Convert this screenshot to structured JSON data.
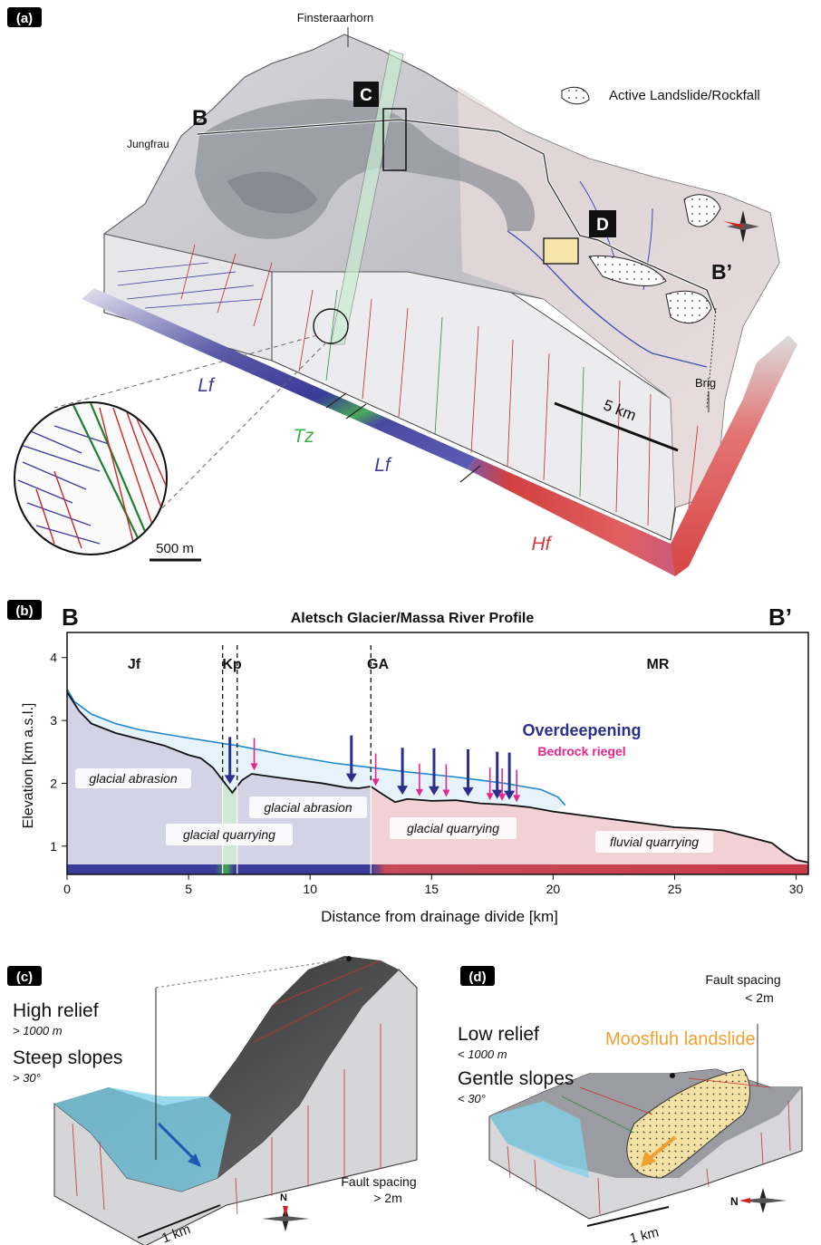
{
  "panels": {
    "a": {
      "tag": "(a)",
      "peak_1": "Finsteraarhorn",
      "peak_2": "Jungfrau",
      "town": "Brig",
      "legend": "Active Landslide/Rockfall",
      "point_b": "B",
      "point_b_prime": "B’",
      "box_c": "C",
      "box_d": "D",
      "scale_km": "5 km",
      "scale_m": "500 m",
      "zone_lf_1": "Lf",
      "zone_tz": "Tz",
      "zone_lf_2": "Lf",
      "zone_hf": "Hf"
    },
    "b": {
      "tag": "(b)",
      "title": "Aletsch Glacier/Massa River Profile",
      "left_label": "B",
      "right_label": "B’",
      "zones": [
        "Jf",
        "Kp",
        "GA",
        "MR"
      ],
      "legend_overdeepening": "Overdeepening",
      "legend_riegel": "Bedrock riegel",
      "process_1": "glacial abrasion",
      "process_2": "glacial quarrying",
      "process_3": "glacial abrasion",
      "process_4": "glacial quarrying",
      "process_5": "fluvial quarrying",
      "xlabel": "Distance from drainage divide  [km]",
      "ylabel": "Elevation [km a.s.l.]"
    },
    "c": {
      "tag": "(c)",
      "relief": "High relief",
      "relief_val": "> 1000 m",
      "slope": "Steep slopes",
      "slope_val": "> 30°",
      "fault_1": "Fault spacing",
      "fault_2": "> 2m",
      "scale": "1 km",
      "north": "N"
    },
    "d": {
      "tag": "(d)",
      "relief": "Low relief",
      "relief_val": "< 1000 m",
      "slope": "Gentle slopes",
      "slope_val": "< 30°",
      "fault_1": "Fault spacing",
      "fault_2": "< 2m",
      "landslide": "Moosfluh landslide",
      "scale": "1 km",
      "north": "N"
    }
  },
  "colors": {
    "lf": "#3d3d9a",
    "tz": "#3fae4a",
    "hf": "#d43a3a",
    "ice": "#1e88d0",
    "overdeepening": "#2b2f8f",
    "riegel": "#e8268c",
    "landslide": "#f0a030"
  },
  "chart_data": {
    "type": "line",
    "xlim": [
      0,
      30.5
    ],
    "ylim": [
      0.55,
      4.4
    ],
    "xticks": [
      0,
      5,
      10,
      15,
      20,
      25,
      30
    ],
    "yticks": [
      1,
      2,
      3,
      4
    ],
    "series": [
      {
        "name": "ice",
        "x": [
          0,
          0.3,
          1,
          2,
          3,
          5,
          7,
          9,
          11,
          12.5,
          14,
          16,
          18,
          19.5,
          20.2,
          20.5
        ],
        "y": [
          3.5,
          3.3,
          3.1,
          2.95,
          2.85,
          2.72,
          2.6,
          2.45,
          2.32,
          2.25,
          2.18,
          2.1,
          2.0,
          1.9,
          1.78,
          1.65
        ]
      },
      {
        "name": "bedrock",
        "x": [
          0,
          0.5,
          1,
          2,
          3,
          4,
          5,
          5.5,
          6,
          6.5,
          6.8,
          7.2,
          7.6,
          8.5,
          9.5,
          10.5,
          11.5,
          12,
          12.5,
          13,
          13.5,
          14,
          15,
          16,
          17,
          18,
          19,
          20,
          21,
          22,
          23,
          24,
          25,
          26,
          27,
          28,
          29,
          29.5,
          30,
          30.5
        ],
        "y": [
          3.45,
          3.15,
          2.95,
          2.8,
          2.7,
          2.6,
          2.45,
          2.4,
          2.25,
          2.0,
          1.85,
          2.05,
          2.15,
          2.1,
          2.05,
          2.0,
          1.93,
          1.92,
          1.95,
          1.82,
          1.7,
          1.75,
          1.72,
          1.73,
          1.68,
          1.66,
          1.62,
          1.55,
          1.5,
          1.45,
          1.4,
          1.35,
          1.3,
          1.28,
          1.25,
          1.15,
          1.05,
          0.9,
          0.78,
          0.74
        ]
      }
    ],
    "vlines": [
      6.4,
      7.0,
      12.5
    ],
    "overdeepening_x": [
      6.7,
      11.7,
      13.8,
      15.1,
      16.5,
      17.7,
      18.2
    ],
    "riegel_x": [
      7.7,
      12.7,
      14.5,
      15.6,
      17.4,
      17.9,
      18.5
    ]
  }
}
